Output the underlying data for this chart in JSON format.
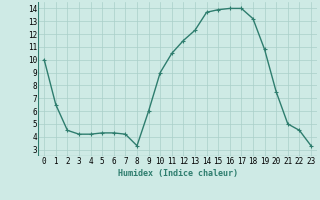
{
  "x": [
    0,
    1,
    2,
    3,
    4,
    5,
    6,
    7,
    8,
    9,
    10,
    11,
    12,
    13,
    14,
    15,
    16,
    17,
    18,
    19,
    20,
    21,
    22,
    23
  ],
  "y": [
    10,
    6.5,
    4.5,
    4.2,
    4.2,
    4.3,
    4.3,
    4.2,
    3.3,
    6.0,
    9.0,
    10.5,
    11.5,
    12.3,
    13.7,
    13.9,
    14.0,
    14.0,
    13.2,
    10.8,
    7.5,
    5.0,
    4.5,
    3.3
  ],
  "line_color": "#2e7d6e",
  "marker": "+",
  "marker_size": 3,
  "linewidth": 1.0,
  "xlabel": "Humidex (Indice chaleur)",
  "xlabel_fontsize": 6,
  "xlim": [
    -0.5,
    23.5
  ],
  "ylim": [
    2.5,
    14.5
  ],
  "yticks": [
    3,
    4,
    5,
    6,
    7,
    8,
    9,
    10,
    11,
    12,
    13,
    14
  ],
  "xticks": [
    0,
    1,
    2,
    3,
    4,
    5,
    6,
    7,
    8,
    9,
    10,
    11,
    12,
    13,
    14,
    15,
    16,
    17,
    18,
    19,
    20,
    21,
    22,
    23
  ],
  "bg_color": "#ceeae5",
  "grid_color": "#aacfc9",
  "tick_fontsize": 5.5,
  "label_color": "#2e7d6e"
}
